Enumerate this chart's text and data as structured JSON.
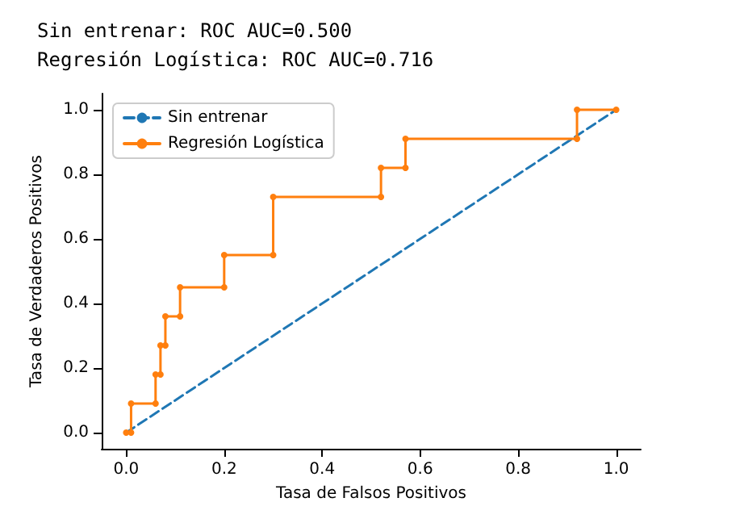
{
  "chart_data": {
    "type": "line",
    "title": "Sin entrenar: ROC AUC=0.500",
    "subtitle": "Regresión Logística: ROC AUC=0.716",
    "xlabel": "Tasa de Falsos Positivos",
    "ylabel": "Tasa de Verdaderos Positivos",
    "series": [
      {
        "name": "Sin entrenar",
        "color": "#1f77b4",
        "line_style": "dashed",
        "marker": "none",
        "x": [
          0,
          1
        ],
        "values": [
          0,
          1
        ]
      },
      {
        "name": "Regresión Logística",
        "color": "#ff7f0e",
        "line_style": "solid",
        "marker": "circle",
        "x": [
          0,
          0.01,
          0.01,
          0.06,
          0.06,
          0.07,
          0.07,
          0.08,
          0.08,
          0.11,
          0.11,
          0.2,
          0.2,
          0.3,
          0.3,
          0.52,
          0.52,
          0.57,
          0.57,
          0.92,
          0.92,
          1
        ],
        "values": [
          0,
          0,
          0.09,
          0.09,
          0.18,
          0.18,
          0.27,
          0.27,
          0.36,
          0.36,
          0.45,
          0.45,
          0.55,
          0.55,
          0.73,
          0.73,
          0.82,
          0.82,
          0.91,
          0.91,
          1,
          1
        ]
      }
    ],
    "xlim": [
      -0.05,
      1.05
    ],
    "ylim": [
      -0.05,
      1.05
    ],
    "xticks": [
      {
        "value": 0,
        "label": "0.0"
      },
      {
        "value": 0.2,
        "label": "0.2"
      },
      {
        "value": 0.4,
        "label": "0.4"
      },
      {
        "value": 0.6,
        "label": "0.6"
      },
      {
        "value": 0.8,
        "label": "0.8"
      },
      {
        "value": 1,
        "label": "1.0"
      }
    ],
    "yticks": [
      {
        "value": 0,
        "label": "0.0"
      },
      {
        "value": 0.2,
        "label": "0.2"
      },
      {
        "value": 0.4,
        "label": "0.4"
      },
      {
        "value": 0.6,
        "label": "0.6"
      },
      {
        "value": 0.8,
        "label": "0.8"
      },
      {
        "value": 1,
        "label": "1.0"
      }
    ],
    "grid": false,
    "legend": "top left"
  }
}
